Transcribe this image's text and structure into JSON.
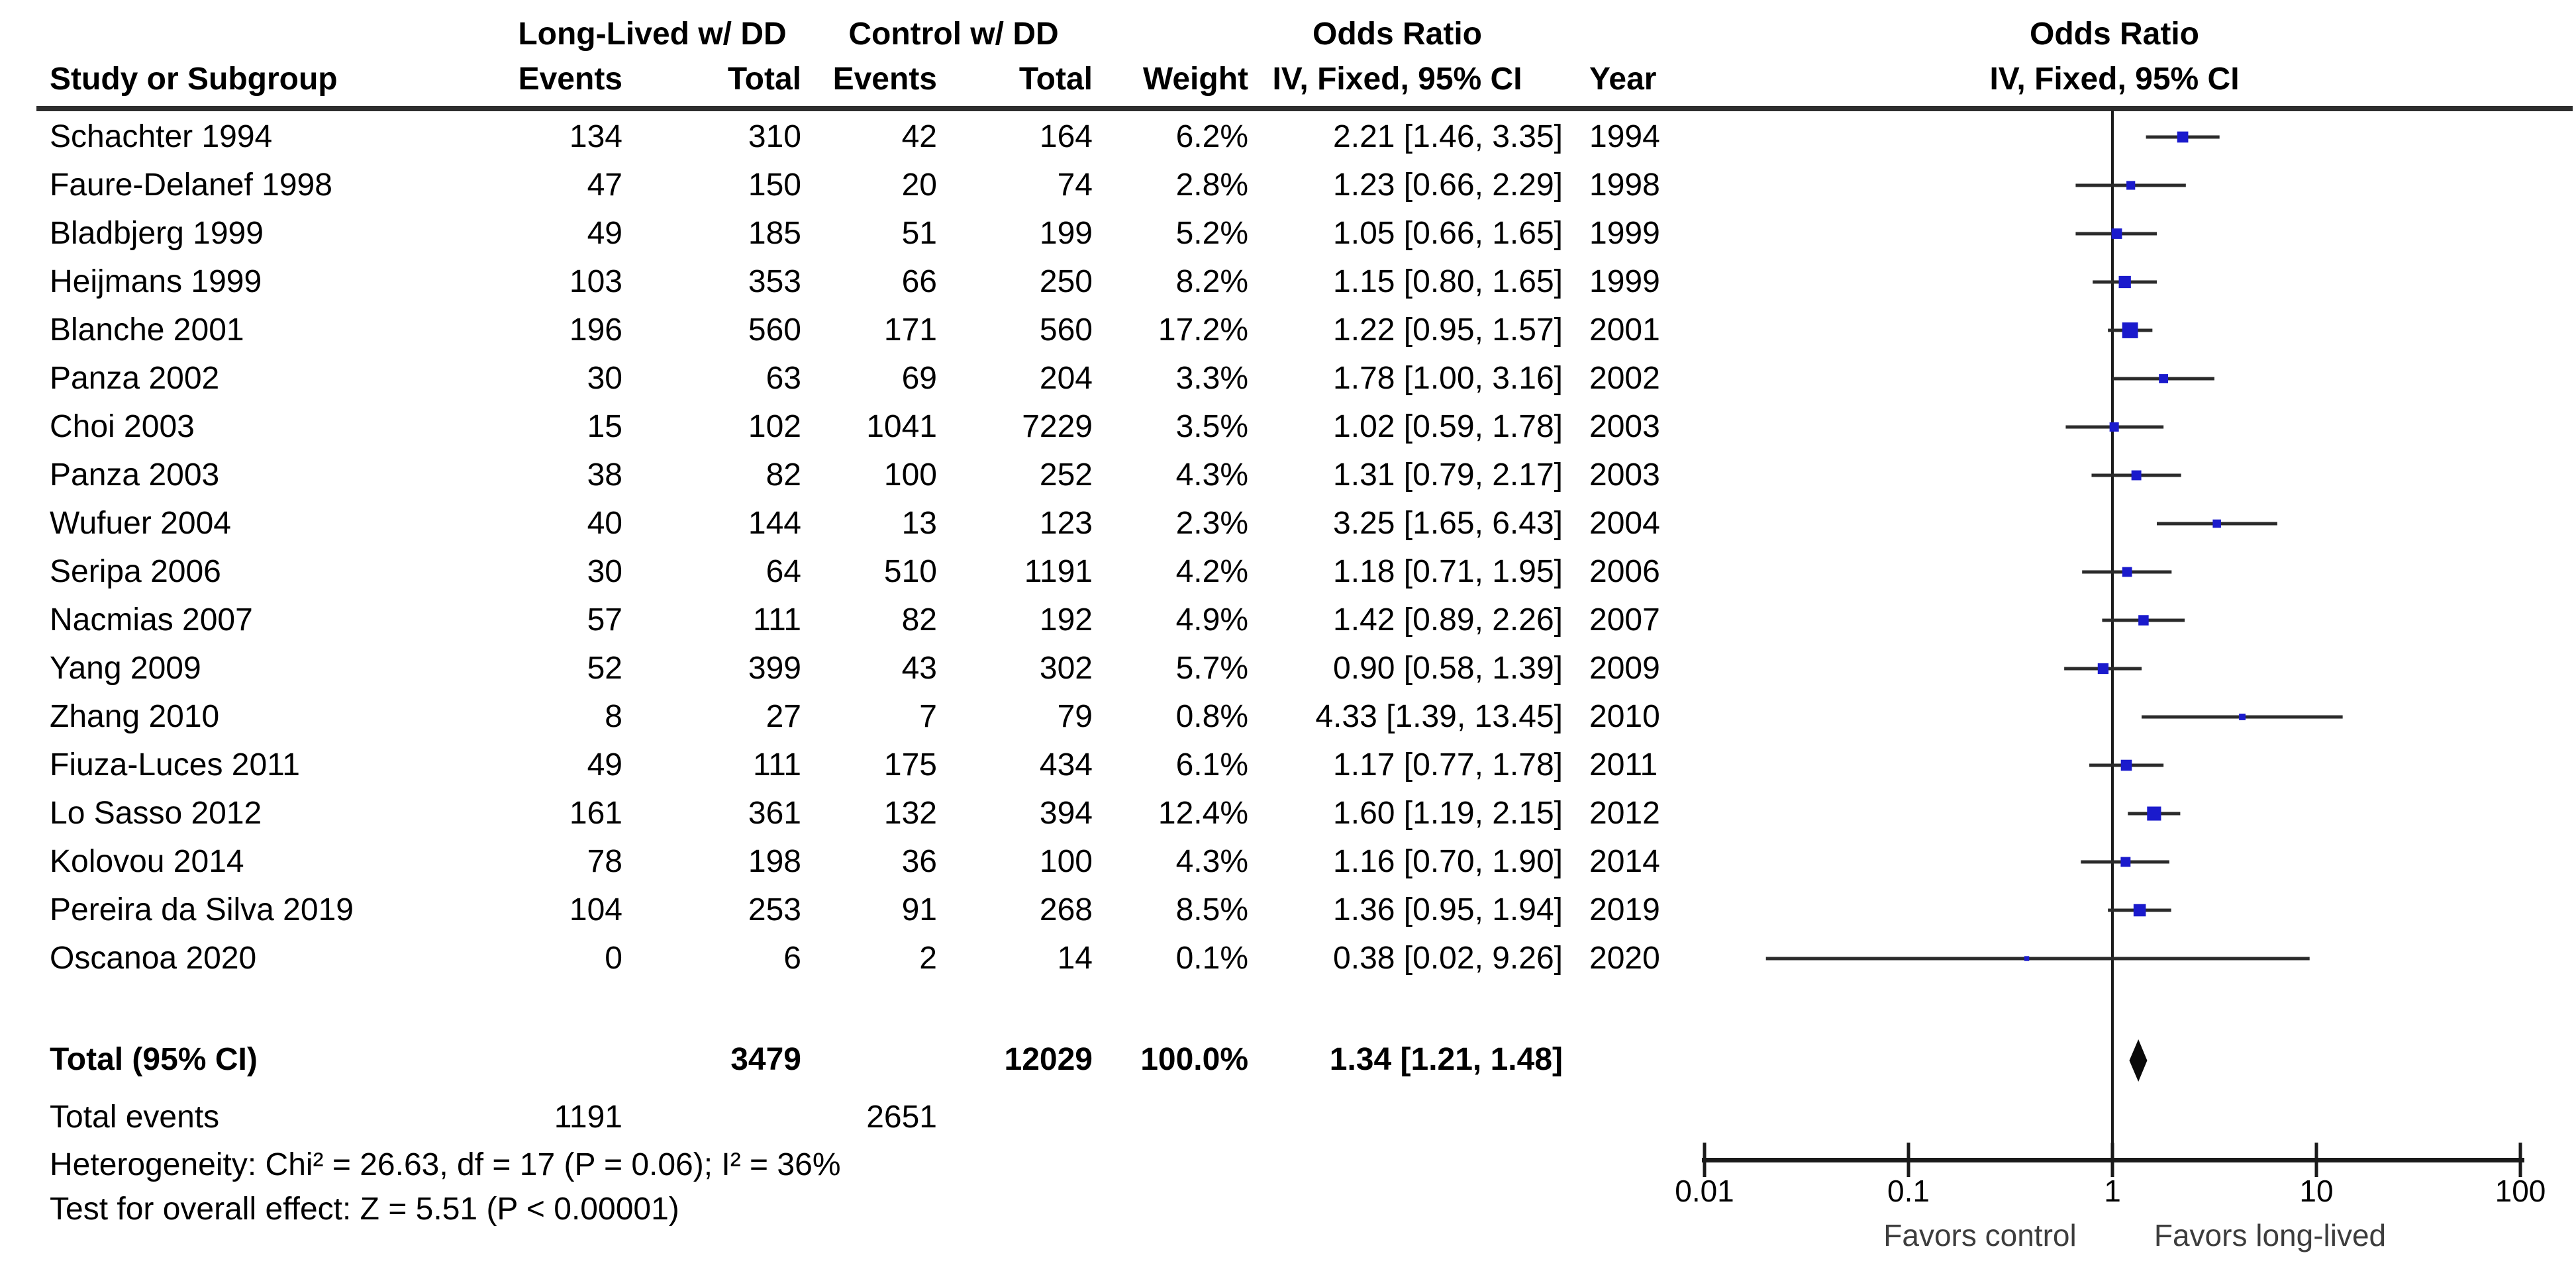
{
  "headers": {
    "study": "Study or Subgroup",
    "group1": "Long-Lived w/ DD",
    "group2": "Control w/ DD",
    "events": "Events",
    "total": "Total",
    "weight": "Weight",
    "or_title": "Odds Ratio",
    "or_sub": "IV, Fixed, 95% CI",
    "plot_title": "Odds Ratio",
    "plot_sub": "IV, Fixed, 95% CI",
    "year": "Year"
  },
  "colors": {
    "marker_blue": "#1a1acc",
    "ci_line": "#2b2b2b",
    "diamond_black": "#0a0a0a",
    "axis_black": "#1a1a1a"
  },
  "chart_data": {
    "type": "forest",
    "effect_measure": "Odds Ratio",
    "model": "IV, Fixed, 95% CI",
    "axis": {
      "scale": "log",
      "ticks": [
        0.01,
        0.1,
        1,
        10,
        100
      ],
      "tick_labels": [
        "0.01",
        "0.1",
        "1",
        "10",
        "100"
      ],
      "favors_left": "Favors control",
      "favors_right": "Favors long-lived"
    },
    "studies": [
      {
        "name": "Schachter 1994",
        "events_exp": "134",
        "total_exp": "310",
        "events_ctrl": "42",
        "total_ctrl": "164",
        "weight_label": "6.2%",
        "weight": 6.2,
        "or": 2.21,
        "ci_low": 1.46,
        "ci_high": 3.35,
        "or_label": "2.21 [1.46, 3.35]",
        "year": "1994"
      },
      {
        "name": "Faure-Delanef 1998",
        "events_exp": "47",
        "total_exp": "150",
        "events_ctrl": "20",
        "total_ctrl": "74",
        "weight_label": "2.8%",
        "weight": 2.8,
        "or": 1.23,
        "ci_low": 0.66,
        "ci_high": 2.29,
        "or_label": "1.23 [0.66, 2.29]",
        "year": "1998"
      },
      {
        "name": "Bladbjerg 1999",
        "events_exp": "49",
        "total_exp": "185",
        "events_ctrl": "51",
        "total_ctrl": "199",
        "weight_label": "5.2%",
        "weight": 5.2,
        "or": 1.05,
        "ci_low": 0.66,
        "ci_high": 1.65,
        "or_label": "1.05 [0.66, 1.65]",
        "year": "1999"
      },
      {
        "name": "Heijmans 1999",
        "events_exp": "103",
        "total_exp": "353",
        "events_ctrl": "66",
        "total_ctrl": "250",
        "weight_label": "8.2%",
        "weight": 8.2,
        "or": 1.15,
        "ci_low": 0.8,
        "ci_high": 1.65,
        "or_label": "1.15 [0.80, 1.65]",
        "year": "1999"
      },
      {
        "name": "Blanche 2001",
        "events_exp": "196",
        "total_exp": "560",
        "events_ctrl": "171",
        "total_ctrl": "560",
        "weight_label": "17.2%",
        "weight": 17.2,
        "or": 1.22,
        "ci_low": 0.95,
        "ci_high": 1.57,
        "or_label": "1.22 [0.95, 1.57]",
        "year": "2001"
      },
      {
        "name": "Panza 2002",
        "events_exp": "30",
        "total_exp": "63",
        "events_ctrl": "69",
        "total_ctrl": "204",
        "weight_label": "3.3%",
        "weight": 3.3,
        "or": 1.78,
        "ci_low": 1.0,
        "ci_high": 3.16,
        "or_label": "1.78 [1.00, 3.16]",
        "year": "2002"
      },
      {
        "name": "Choi 2003",
        "events_exp": "15",
        "total_exp": "102",
        "events_ctrl": "1041",
        "total_ctrl": "7229",
        "weight_label": "3.5%",
        "weight": 3.5,
        "or": 1.02,
        "ci_low": 0.59,
        "ci_high": 1.78,
        "or_label": "1.02 [0.59, 1.78]",
        "year": "2003"
      },
      {
        "name": "Panza 2003",
        "events_exp": "38",
        "total_exp": "82",
        "events_ctrl": "100",
        "total_ctrl": "252",
        "weight_label": "4.3%",
        "weight": 4.3,
        "or": 1.31,
        "ci_low": 0.79,
        "ci_high": 2.17,
        "or_label": "1.31 [0.79, 2.17]",
        "year": "2003"
      },
      {
        "name": "Wufuer 2004",
        "events_exp": "40",
        "total_exp": "144",
        "events_ctrl": "13",
        "total_ctrl": "123",
        "weight_label": "2.3%",
        "weight": 2.3,
        "or": 3.25,
        "ci_low": 1.65,
        "ci_high": 6.43,
        "or_label": "3.25 [1.65, 6.43]",
        "year": "2004"
      },
      {
        "name": "Seripa 2006",
        "events_exp": "30",
        "total_exp": "64",
        "events_ctrl": "510",
        "total_ctrl": "1191",
        "weight_label": "4.2%",
        "weight": 4.2,
        "or": 1.18,
        "ci_low": 0.71,
        "ci_high": 1.95,
        "or_label": "1.18 [0.71, 1.95]",
        "year": "2006"
      },
      {
        "name": "Nacmias 2007",
        "events_exp": "57",
        "total_exp": "111",
        "events_ctrl": "82",
        "total_ctrl": "192",
        "weight_label": "4.9%",
        "weight": 4.9,
        "or": 1.42,
        "ci_low": 0.89,
        "ci_high": 2.26,
        "or_label": "1.42 [0.89, 2.26]",
        "year": "2007"
      },
      {
        "name": "Yang 2009",
        "events_exp": "52",
        "total_exp": "399",
        "events_ctrl": "43",
        "total_ctrl": "302",
        "weight_label": "5.7%",
        "weight": 5.7,
        "or": 0.9,
        "ci_low": 0.58,
        "ci_high": 1.39,
        "or_label": "0.90 [0.58, 1.39]",
        "year": "2009"
      },
      {
        "name": "Zhang 2010",
        "events_exp": "8",
        "total_exp": "27",
        "events_ctrl": "7",
        "total_ctrl": "79",
        "weight_label": "0.8%",
        "weight": 0.8,
        "or": 4.33,
        "ci_low": 1.39,
        "ci_high": 13.45,
        "or_label": "4.33 [1.39, 13.45]",
        "year": "2010"
      },
      {
        "name": "Fiuza-Luces 2011",
        "events_exp": "49",
        "total_exp": "111",
        "events_ctrl": "175",
        "total_ctrl": "434",
        "weight_label": "6.1%",
        "weight": 6.1,
        "or": 1.17,
        "ci_low": 0.77,
        "ci_high": 1.78,
        "or_label": "1.17 [0.77, 1.78]",
        "year": "2011"
      },
      {
        "name": "Lo Sasso 2012",
        "events_exp": "161",
        "total_exp": "361",
        "events_ctrl": "132",
        "total_ctrl": "394",
        "weight_label": "12.4%",
        "weight": 12.4,
        "or": 1.6,
        "ci_low": 1.19,
        "ci_high": 2.15,
        "or_label": "1.60 [1.19, 2.15]",
        "year": "2012"
      },
      {
        "name": "Kolovou 2014",
        "events_exp": "78",
        "total_exp": "198",
        "events_ctrl": "36",
        "total_ctrl": "100",
        "weight_label": "4.3%",
        "weight": 4.3,
        "or": 1.16,
        "ci_low": 0.7,
        "ci_high": 1.9,
        "or_label": "1.16 [0.70, 1.90]",
        "year": "2014"
      },
      {
        "name": "Pereira da Silva 2019",
        "events_exp": "104",
        "total_exp": "253",
        "events_ctrl": "91",
        "total_ctrl": "268",
        "weight_label": "8.5%",
        "weight": 8.5,
        "or": 1.36,
        "ci_low": 0.95,
        "ci_high": 1.94,
        "or_label": "1.36 [0.95, 1.94]",
        "year": "2019"
      },
      {
        "name": "Oscanoa 2020",
        "events_exp": "0",
        "total_exp": "6",
        "events_ctrl": "2",
        "total_ctrl": "14",
        "weight_label": "0.1%",
        "weight": 0.1,
        "or": 0.38,
        "ci_low": 0.02,
        "ci_high": 9.26,
        "or_label": "0.38 [0.02, 9.26]",
        "year": "2020"
      }
    ],
    "total": {
      "label": "Total (95% CI)",
      "total_exp": "3479",
      "total_ctrl": "12029",
      "weight_label": "100.0%",
      "or": 1.34,
      "ci_low": 1.21,
      "ci_high": 1.48,
      "or_label": "1.34 [1.21, 1.48]"
    },
    "total_events": {
      "label": "Total events",
      "exp": "1191",
      "ctrl": "2651"
    },
    "heterogeneity": "Heterogeneity: Chi² = 26.63, df = 17 (P = 0.06); I² = 36%",
    "overall_effect": "Test for overall effect: Z = 5.51 (P < 0.00001)"
  }
}
